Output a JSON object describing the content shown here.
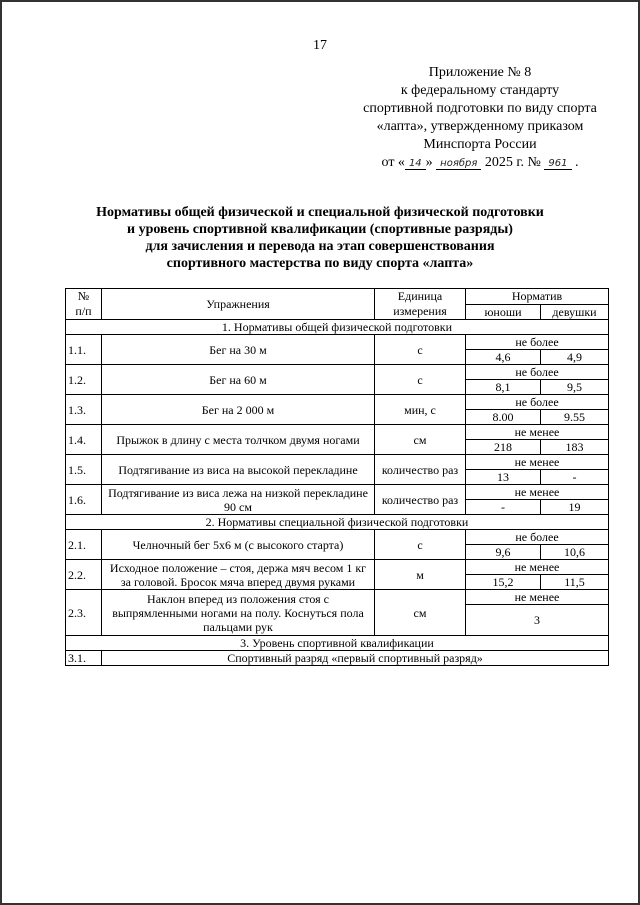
{
  "page_number": "17",
  "appendix": {
    "lines": [
      "Приложение № 8",
      "к федеральному стандарту",
      "спортивной подготовки по виду спорта",
      "«лапта», утвержденному приказом",
      "Минспорта России"
    ],
    "date_prefix": "от «",
    "day": "14",
    "mid": "»",
    "month": "ноября",
    "year": "2025 г. №",
    "number": "961",
    "end": "."
  },
  "title": [
    "Нормативы общей физической и специальной физической подготовки",
    "и уровень спортивной квалификации (спортивные разряды)",
    "для зачисления и перевода на этап совершенствования",
    "спортивного мастерства по виду спорта «лапта»"
  ],
  "table": {
    "headers": {
      "num": "№\nп/п",
      "exercise": "Упражнения",
      "unit": "Единица измерения",
      "norm": "Норматив",
      "boys": "юноши",
      "girls": "девушки"
    },
    "sections": [
      {
        "title": "1. Нормативы общей физической подготовки",
        "rows": [
          {
            "num": "1.1.",
            "exercise": "Бег на 30 м",
            "unit": "с",
            "cond": "не более",
            "boys": "4,6",
            "girls": "4,9"
          },
          {
            "num": "1.2.",
            "exercise": "Бег на 60 м",
            "unit": "с",
            "cond": "не более",
            "boys": "8,1",
            "girls": "9,5"
          },
          {
            "num": "1.3.",
            "exercise": "Бег на 2 000 м",
            "unit": "мин, с",
            "cond": "не более",
            "boys": "8.00",
            "girls": "9.55"
          },
          {
            "num": "1.4.",
            "exercise": "Прыжок в длину с места толчком двумя ногами",
            "unit": "см",
            "cond": "не менее",
            "boys": "218",
            "girls": "183"
          },
          {
            "num": "1.5.",
            "exercise": "Подтягивание из виса на высокой перекладине",
            "unit": "количество раз",
            "cond": "не менее",
            "boys": "13",
            "girls": "-"
          },
          {
            "num": "1.6.",
            "exercise": "Подтягивание из виса лежа на низкой перекладине 90 см",
            "unit": "количество раз",
            "cond": "не менее",
            "boys": "-",
            "girls": "19"
          }
        ]
      },
      {
        "title": "2. Нормативы специальной физической подготовки",
        "rows": [
          {
            "num": "2.1.",
            "exercise": "Челночный бег 5х6 м (с высокого старта)",
            "unit": "с",
            "cond": "не более",
            "boys": "9,6",
            "girls": "10,6"
          },
          {
            "num": "2.2.",
            "exercise": "Исходное положение – стоя, держа мяч весом 1 кг за головой. Бросок мяча вперед двумя руками",
            "unit": "м",
            "cond": "не менее",
            "boys": "15,2",
            "girls": "11,5"
          },
          {
            "num": "2.3.",
            "exercise": "Наклон вперед из положения стоя с выпрямленными ногами на полу. Коснуться пола пальцами рук",
            "unit": "см",
            "cond": "не менее",
            "both": "3"
          }
        ]
      },
      {
        "title": "3. Уровень спортивной квалификации",
        "rows": [
          {
            "num": "3.1.",
            "exercise": "Спортивный разряд «первый спортивный разряд»"
          }
        ]
      }
    ]
  }
}
